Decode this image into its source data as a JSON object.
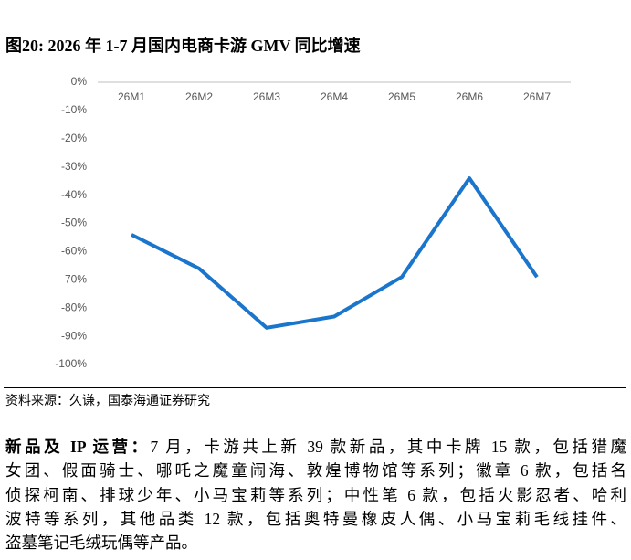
{
  "figure_title": "图20:  2026 年 1-7 月国内电商卡游 GMV 同比增速",
  "chart_data": {
    "type": "line",
    "categories": [
      "26M1",
      "26M2",
      "26M3",
      "26M4",
      "26M5",
      "26M6",
      "26M7"
    ],
    "series": [
      {
        "color": "#1a75cc",
        "values": [
          -54,
          -66,
          -87,
          -83,
          -69,
          -34,
          -69
        ]
      }
    ],
    "ylim": [
      -100,
      0
    ],
    "yticks": [
      {
        "value": 0,
        "label": "0%"
      },
      {
        "value": -10,
        "label": "-10%"
      },
      {
        "value": -20,
        "label": "-20%"
      },
      {
        "value": -30,
        "label": "-30%"
      },
      {
        "value": -40,
        "label": "-40%"
      },
      {
        "value": -50,
        "label": "-50%"
      },
      {
        "value": -60,
        "label": "-60%"
      },
      {
        "value": -70,
        "label": "-70%"
      },
      {
        "value": -80,
        "label": "-80%"
      },
      {
        "value": -90,
        "label": "-90%"
      },
      {
        "value": -100,
        "label": "-100%"
      }
    ],
    "grid": false
  },
  "source": "资料来源：久谦，国泰海通证券研究",
  "paragraph": {
    "lead": "新品及 IP 运营：",
    "lines": [
      "7 月，卡游共上新 39 款新品，其中卡牌 15 款，包括猎魔",
      "女团、假面骑士、哪吒之魔童闹海、敦煌博物馆等系列；徽章 6 款，包括名",
      "侦探柯南、排球少年、小马宝莉等系列；中性笔 6 款，包括火影忍者、哈利",
      "波特等系列，其他品类 12 款，包括奥特曼橡皮人偶、小马宝莉毛线挂件、",
      "盗墓笔记毛绒玩偶等产品。"
    ]
  }
}
